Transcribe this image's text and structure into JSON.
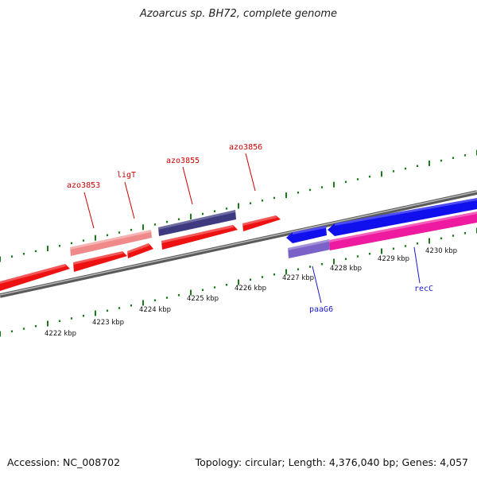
{
  "title": "Azoarcus sp. BH72, complete genome",
  "footer": {
    "accession": "Accession: NC_008702",
    "summary": "Topology: circular; Length: 4,376,040 bp; Genes: 4,057"
  },
  "scale_labels": [
    "4222 kbp",
    "4223 kbp",
    "4224 kbp",
    "4225 kbp",
    "4226 kbp",
    "4227 kbp",
    "4228 kbp",
    "4229 kbp",
    "4230 kbp"
  ],
  "gene_labels": {
    "azo3853": "azo3853",
    "ligT": "ligT",
    "azo3855": "azo3855",
    "azo3856": "azo3856",
    "paaG6": "paaG6",
    "recC": "recC"
  },
  "colors": {
    "red_gene": "#ee1111",
    "pink_gene": "#f08a8a",
    "navy_gene": "#3d3a80",
    "blue_gene": "#1010ee",
    "magenta_gene": "#ee1aa0",
    "lavender_gene": "#7a62c8",
    "backbone": "#8a8a8a",
    "tick": "#1c7a1c",
    "label_red": "#cc0000",
    "label_blue": "#1a1acc"
  }
}
